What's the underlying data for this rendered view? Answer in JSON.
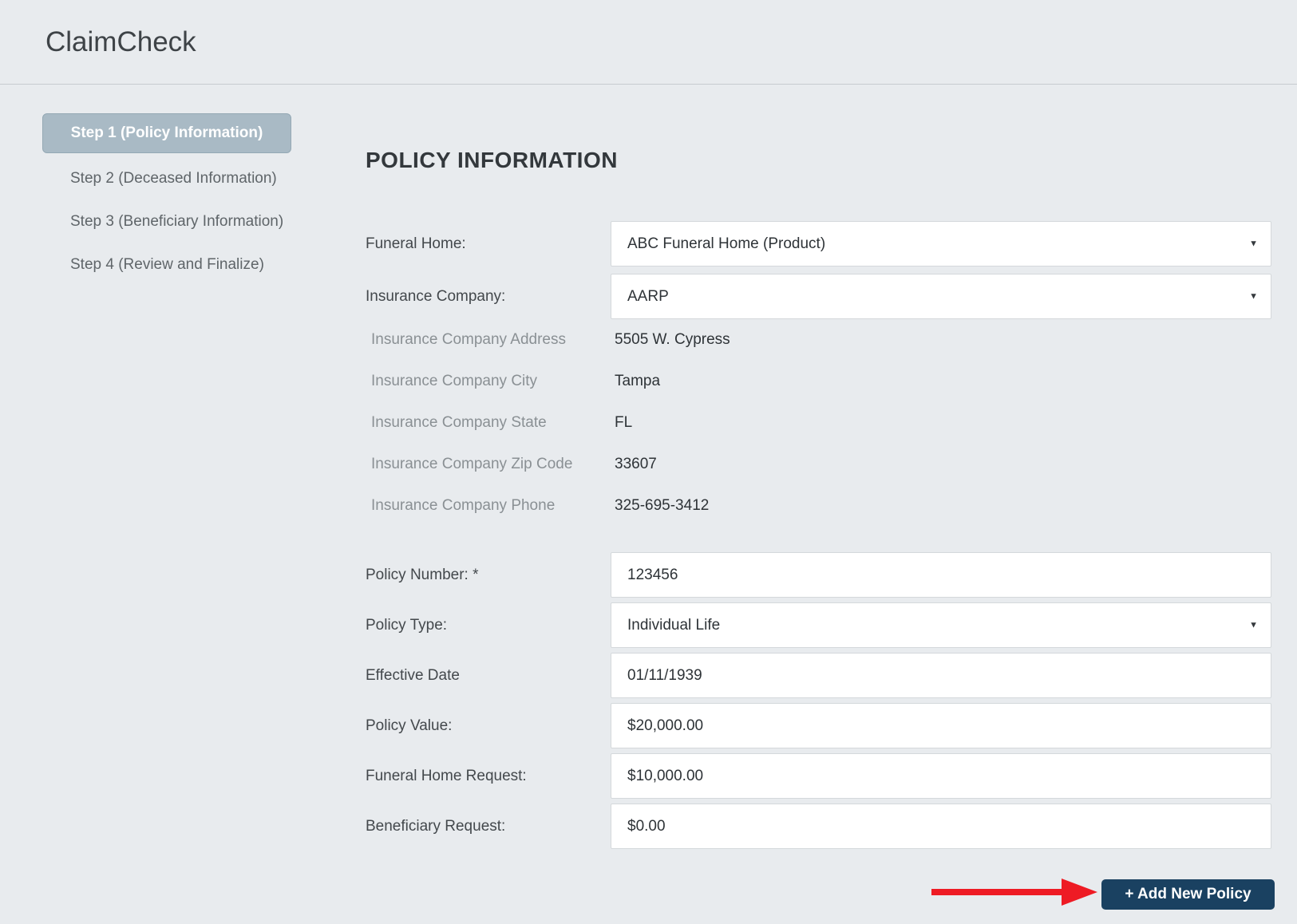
{
  "app": {
    "title": "ClaimCheck"
  },
  "sidebar": {
    "steps": [
      {
        "label": "Step 1 (Policy Information)",
        "active": true
      },
      {
        "label": "Step 2 (Deceased Information)",
        "active": false
      },
      {
        "label": "Step 3 (Beneficiary Information)",
        "active": false
      },
      {
        "label": "Step 4 (Review and Finalize)",
        "active": false
      }
    ]
  },
  "form": {
    "title": "POLICY INFORMATION",
    "rows": [
      {
        "label": "Funeral Home:",
        "value": "ABC Funeral Home (Product)",
        "type": "select"
      },
      {
        "label": "Insurance Company:",
        "value": "AARP",
        "type": "select"
      },
      {
        "label": "Insurance Company Address",
        "value": "5505 W. Cypress",
        "type": "readonly"
      },
      {
        "label": "Insurance Company City",
        "value": "Tampa",
        "type": "readonly"
      },
      {
        "label": "Insurance Company State",
        "value": "FL",
        "type": "readonly"
      },
      {
        "label": "Insurance Company Zip Code",
        "value": "33607",
        "type": "readonly"
      },
      {
        "label": "Insurance Company Phone",
        "value": "325-695-3412",
        "type": "readonly"
      },
      {
        "label": "Policy Number: *",
        "value": "123456",
        "type": "input"
      },
      {
        "label": "Policy Type:",
        "value": "Individual Life",
        "type": "select"
      },
      {
        "label": "Effective Date",
        "value": "01/11/1939",
        "type": "input"
      },
      {
        "label": "Policy Value:",
        "value": "$20,000.00",
        "type": "input"
      },
      {
        "label": "Funeral Home Request:",
        "value": "$10,000.00",
        "type": "input"
      },
      {
        "label": "Beneficiary Request:",
        "value": "$0.00",
        "type": "input"
      }
    ]
  },
  "actions": {
    "add_new_policy": "+ Add New Policy"
  },
  "icons": {
    "dropdown_arrow": "▼"
  },
  "annotation": {
    "description": "red arrow pointing to Add New Policy button",
    "color": "#ee1b24"
  },
  "colors": {
    "background": "#e8ebee",
    "active_step_bg": "#a9bac5",
    "button_navy": "#1a4161",
    "annotation_red": "#ee1b24"
  }
}
